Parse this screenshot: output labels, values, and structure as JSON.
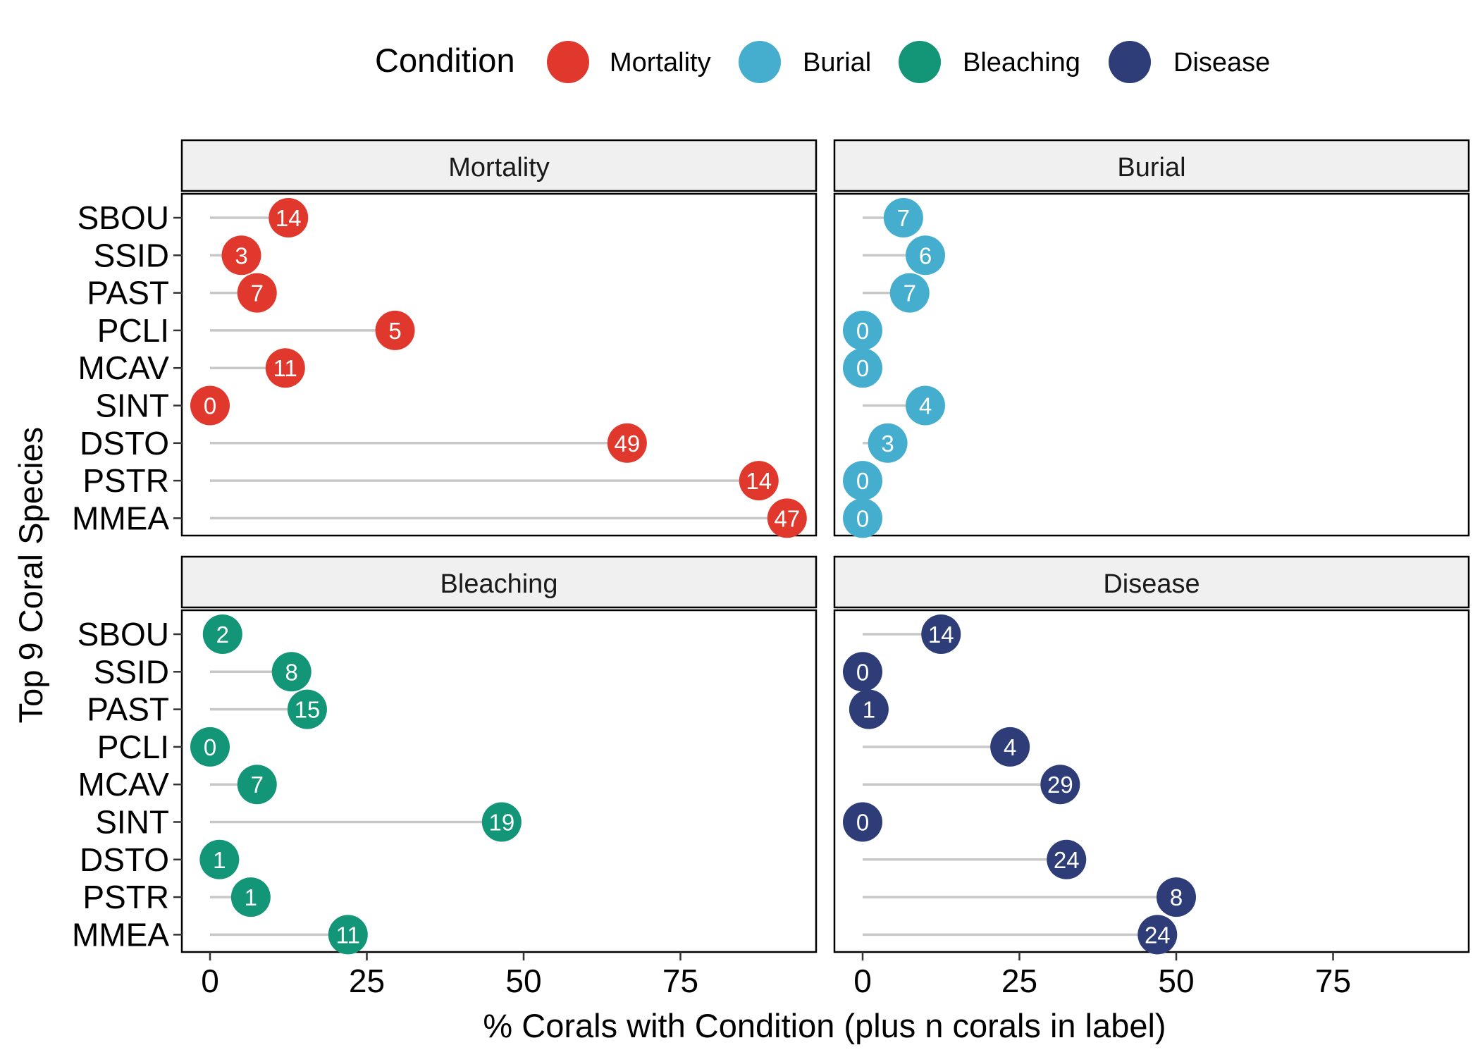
{
  "chart_data": {
    "type": "lollipop",
    "xlabel": "% Corals with Condition (plus n corals in label)",
    "ylabel": "Top 9 Coral Species",
    "xlim": [
      0,
      95
    ],
    "xticks": [
      0,
      25,
      50,
      75
    ],
    "categories": [
      "SBOU",
      "SSID",
      "PAST",
      "PCLI",
      "MCAV",
      "SINT",
      "DSTO",
      "PSTR",
      "MMEA"
    ],
    "legend": {
      "title": "Condition",
      "position": "top",
      "items": [
        {
          "label": "Mortality",
          "color": "#e0382c"
        },
        {
          "label": "Burial",
          "color": "#45aecf"
        },
        {
          "label": "Bleaching",
          "color": "#139577"
        },
        {
          "label": "Disease",
          "color": "#2e3d78"
        }
      ]
    },
    "panels": [
      {
        "name": "Mortality",
        "color": "#e0382c",
        "values": [
          12.5,
          5,
          7.5,
          29.5,
          12,
          0,
          66.5,
          87.5,
          92
        ],
        "labels": [
          "14",
          "3",
          "7",
          "5",
          "11",
          "0",
          "49",
          "14",
          "47"
        ]
      },
      {
        "name": "Burial",
        "color": "#45aecf",
        "values": [
          6.5,
          10,
          7.5,
          0,
          0,
          10,
          4,
          0,
          0
        ],
        "labels": [
          "7",
          "6",
          "7",
          "0",
          "0",
          "4",
          "3",
          "0",
          "0"
        ]
      },
      {
        "name": "Bleaching",
        "color": "#139577",
        "values": [
          2,
          13,
          15.5,
          0,
          7.5,
          46.5,
          1.5,
          6.5,
          22
        ],
        "labels": [
          "2",
          "8",
          "15",
          "0",
          "7",
          "19",
          "1",
          "1",
          "11"
        ]
      },
      {
        "name": "Disease",
        "color": "#2e3d78",
        "values": [
          12.5,
          0,
          1,
          23.5,
          31.5,
          0,
          32.5,
          50,
          47
        ],
        "labels": [
          "14",
          "0",
          "1",
          "4",
          "29",
          "0",
          "24",
          "8",
          "24"
        ]
      }
    ]
  }
}
